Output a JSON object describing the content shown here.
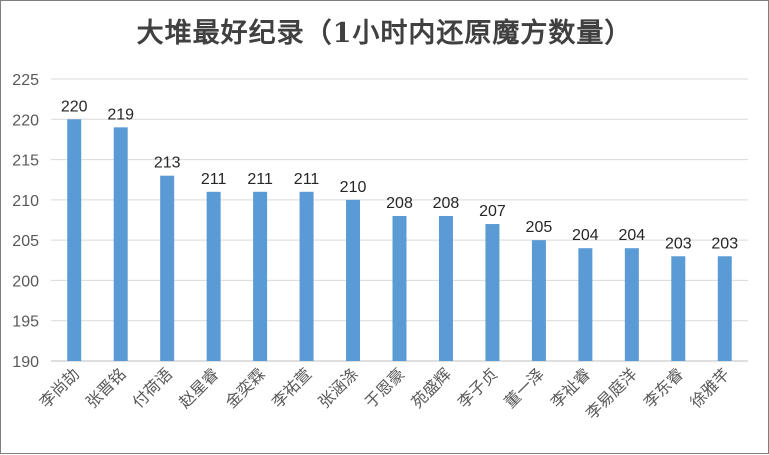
{
  "chart_data": {
    "type": "bar",
    "title": "大堆最好纪录（1小时内还原魔方数量）",
    "categories": [
      "李尚劼",
      "张晋铭",
      "付荷语",
      "赵星睿",
      "金奕霖",
      "李祐萱",
      "张涵涤",
      "于恩豪",
      "苑盛辉",
      "李子贞",
      "董一泽",
      "李祉睿",
      "李易庭洋",
      "李东睿",
      "徐雅芊"
    ],
    "values": [
      220,
      219,
      213,
      211,
      211,
      211,
      210,
      208,
      208,
      207,
      205,
      204,
      204,
      203,
      203
    ],
    "ylim": [
      190,
      225
    ],
    "yticks": [
      190,
      195,
      200,
      205,
      210,
      215,
      220,
      225
    ],
    "grid": true,
    "legend": "none",
    "bar_color": "#5b9bd5",
    "grid_color": "#d9d9d9",
    "axis_color": "#bfbfbf"
  }
}
